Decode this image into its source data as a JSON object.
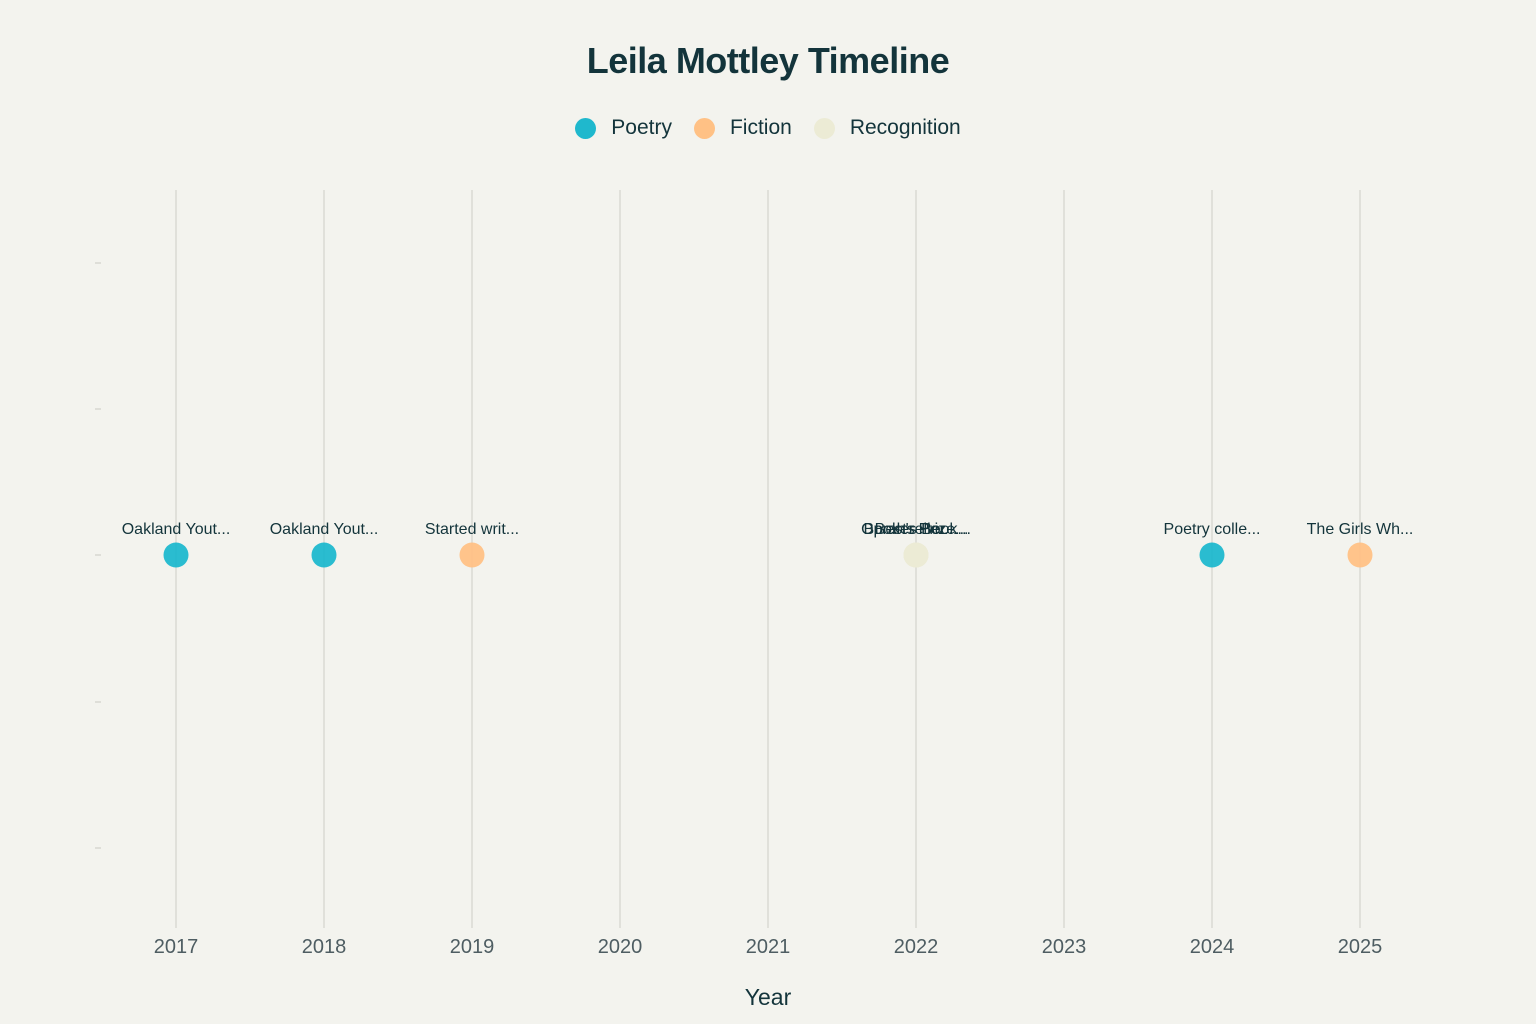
{
  "chart_data": {
    "type": "scatter",
    "title": "Leila Mottley Timeline",
    "xlabel": "Year",
    "ylabel": "",
    "x_ticks": [
      2017,
      2018,
      2019,
      2020,
      2021,
      2022,
      2023,
      2024,
      2025
    ],
    "xlim": [
      2016.5,
      2025.5
    ],
    "grid": "vertical",
    "legend_position": "top-center",
    "series": [
      {
        "name": "Poetry",
        "color": "#1fb8cd",
        "points": [
          {
            "x": 2017,
            "y": 0,
            "label": "Oakland Yout..."
          },
          {
            "x": 2018,
            "y": 0,
            "label": "Oakland Yout..."
          },
          {
            "x": 2024,
            "y": 0,
            "label": "Poetry colle..."
          }
        ]
      },
      {
        "name": "Fiction",
        "color": "#ffc185",
        "points": [
          {
            "x": 2019,
            "y": 0,
            "label": "Started writ..."
          },
          {
            "x": 2025,
            "y": 0,
            "label": "The Girls Wh..."
          }
        ]
      },
      {
        "name": "Recognition",
        "color": "#ecebd5",
        "points": [
          {
            "x": 2022,
            "y": 0,
            "label": "Booker Prize..."
          },
          {
            "x": 2022,
            "y": 0,
            "label": "Oprah's Book..."
          },
          {
            "x": 2022,
            "y": 0,
            "label": "Bestseller..."
          }
        ]
      }
    ]
  }
}
